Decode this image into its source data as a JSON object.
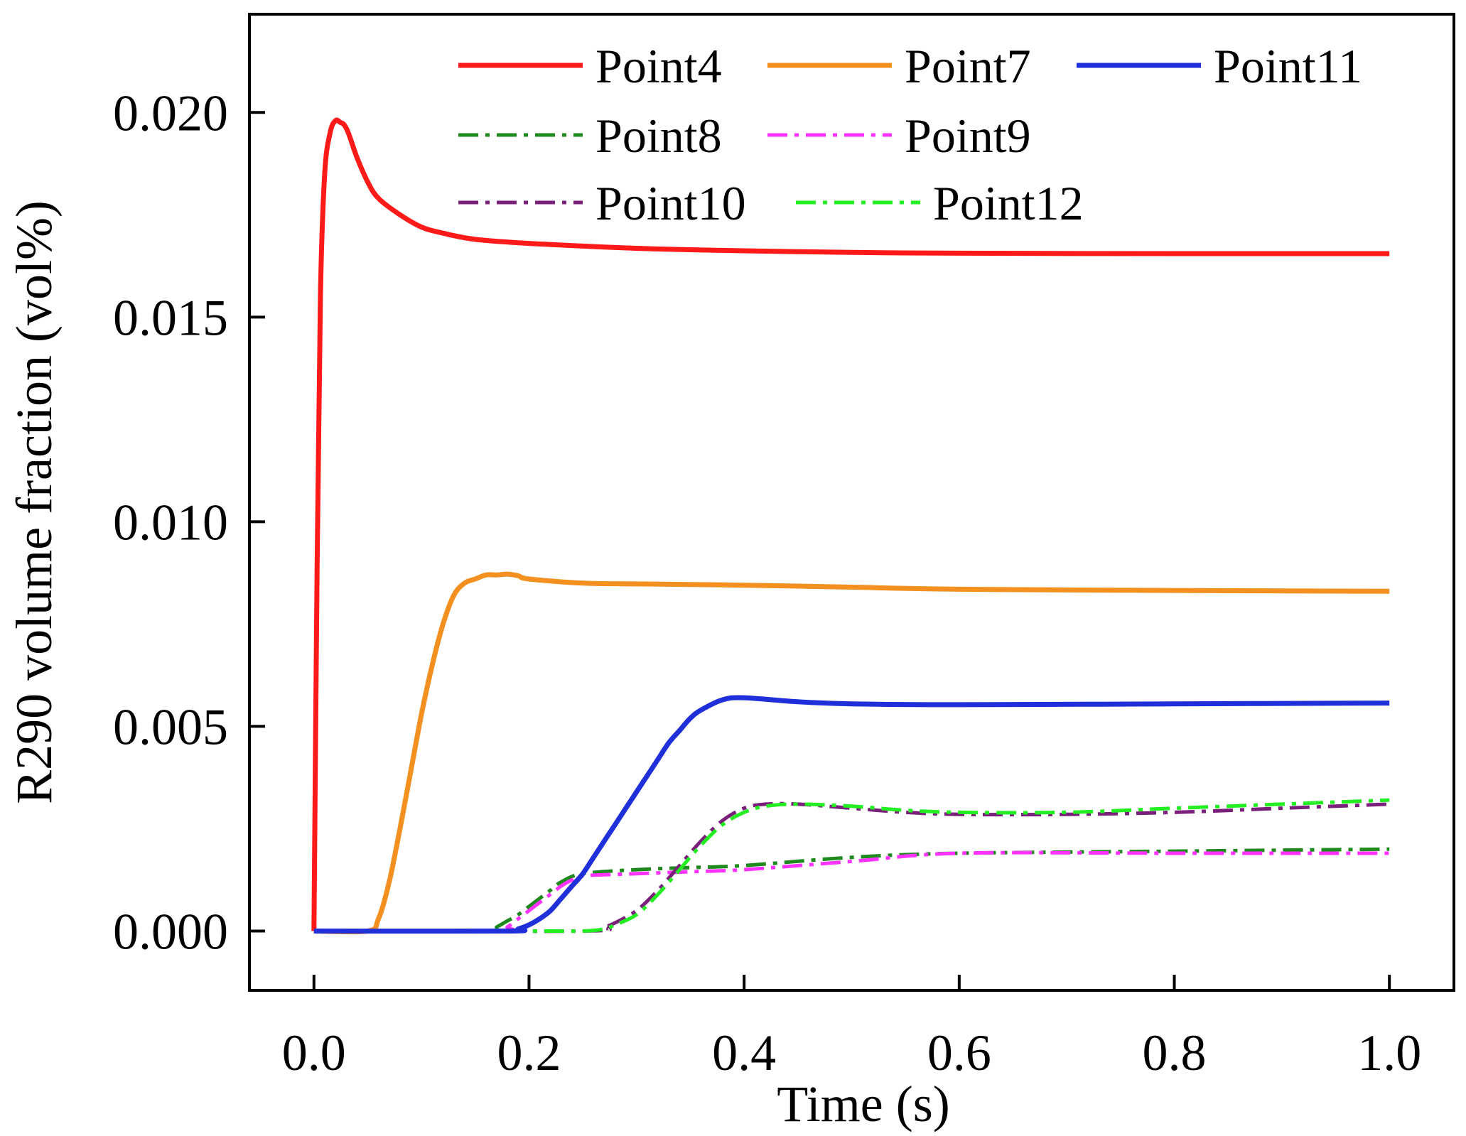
{
  "chart_data": {
    "type": "line",
    "title": "",
    "xlabel": "Time (s)",
    "ylabel": "R290 volume fraction (vol%)",
    "xlim": [
      -0.06,
      1.06
    ],
    "ylim": [
      -0.00145,
      0.0224
    ],
    "xticks": [
      0.0,
      0.2,
      0.4,
      0.6,
      0.8,
      1.0
    ],
    "xtick_labels": [
      "0.0",
      "0.2",
      "0.4",
      "0.6",
      "0.8",
      "1.0"
    ],
    "yticks": [
      0.0,
      0.005,
      0.01,
      0.015,
      0.02
    ],
    "ytick_labels": [
      "0.000",
      "0.005",
      "0.010",
      "0.015",
      "0.020"
    ],
    "grid": false,
    "legend_position": "top-right",
    "series": [
      {
        "name": "Point4",
        "color": "#ff1a1a",
        "style": "solid",
        "x": [
          0,
          0.003,
          0.006,
          0.01,
          0.015,
          0.02,
          0.025,
          0.028,
          0.032,
          0.04,
          0.05,
          0.06,
          0.08,
          0.1,
          0.12,
          0.15,
          0.2,
          0.3,
          0.4,
          0.5,
          0.6,
          0.8,
          1.0
        ],
        "y": [
          0,
          0.009,
          0.0155,
          0.0185,
          0.0195,
          0.0198,
          0.01975,
          0.0197,
          0.0195,
          0.0189,
          0.0183,
          0.0179,
          0.0175,
          0.0172,
          0.01705,
          0.0169,
          0.0168,
          0.01668,
          0.01662,
          0.01658,
          0.01656,
          0.01655,
          0.01655
        ]
      },
      {
        "name": "Point7",
        "color": "#f39020",
        "style": "solid",
        "x": [
          0,
          0.05,
          0.06,
          0.07,
          0.08,
          0.09,
          0.1,
          0.11,
          0.12,
          0.13,
          0.14,
          0.15,
          0.16,
          0.17,
          0.18,
          0.19,
          0.2,
          0.25,
          0.3,
          0.4,
          0.5,
          0.6,
          0.8,
          1.0
        ],
        "y": [
          0,
          0,
          0.0003,
          0.0012,
          0.0025,
          0.0039,
          0.0053,
          0.0065,
          0.0075,
          0.0082,
          0.0085,
          0.0086,
          0.0087,
          0.0087,
          0.00872,
          0.00868,
          0.0086,
          0.0085,
          0.00848,
          0.00845,
          0.0084,
          0.00835,
          0.00832,
          0.0083
        ]
      },
      {
        "name": "Point11",
        "color": "#1f2fd9",
        "style": "solid",
        "x": [
          0,
          0.18,
          0.19,
          0.2,
          0.21,
          0.22,
          0.23,
          0.24,
          0.25,
          0.26,
          0.27,
          0.28,
          0.29,
          0.3,
          0.31,
          0.32,
          0.33,
          0.34,
          0.35,
          0.36,
          0.38,
          0.4,
          0.45,
          0.5,
          0.6,
          0.8,
          1.0
        ],
        "y": [
          0,
          0,
          5e-05,
          0.00015,
          0.0003,
          0.0005,
          0.0008,
          0.0011,
          0.0014,
          0.0018,
          0.0022,
          0.0026,
          0.003,
          0.0034,
          0.0038,
          0.0042,
          0.0046,
          0.0049,
          0.0052,
          0.0054,
          0.00565,
          0.0057,
          0.0056,
          0.00555,
          0.00553,
          0.00555,
          0.00557
        ]
      },
      {
        "name": "Point8",
        "color": "#1e8a1e",
        "style": "dashdot",
        "x": [
          0,
          0.16,
          0.17,
          0.18,
          0.19,
          0.2,
          0.21,
          0.22,
          0.23,
          0.25,
          0.3,
          0.35,
          0.4,
          0.5,
          0.6,
          0.8,
          1.0
        ],
        "y": [
          0,
          0,
          0.0001,
          0.00025,
          0.0004,
          0.0006,
          0.0008,
          0.001,
          0.0012,
          0.0014,
          0.0015,
          0.00155,
          0.0016,
          0.0018,
          0.0019,
          0.00195,
          0.002
        ]
      },
      {
        "name": "Point9",
        "color": "#ff33ff",
        "style": "dashdot",
        "x": [
          0,
          0.17,
          0.18,
          0.19,
          0.2,
          0.21,
          0.22,
          0.23,
          0.24,
          0.25,
          0.3,
          0.35,
          0.4,
          0.5,
          0.6,
          0.8,
          1.0
        ],
        "y": [
          0,
          0,
          0.0001,
          0.0003,
          0.0005,
          0.0007,
          0.0009,
          0.0011,
          0.00125,
          0.00135,
          0.0014,
          0.00145,
          0.0015,
          0.0017,
          0.0019,
          0.0019,
          0.0019
        ]
      },
      {
        "name": "Point10",
        "color": "#7a1f7a",
        "style": "dashdot",
        "x": [
          0,
          0.25,
          0.27,
          0.28,
          0.3,
          0.32,
          0.34,
          0.36,
          0.38,
          0.4,
          0.42,
          0.45,
          0.5,
          0.55,
          0.6,
          0.7,
          0.8,
          0.9,
          1.0
        ],
        "y": [
          0,
          0,
          0.0001,
          0.0002,
          0.0005,
          0.001,
          0.0016,
          0.0022,
          0.0027,
          0.003,
          0.0031,
          0.0031,
          0.003,
          0.0029,
          0.00285,
          0.00285,
          0.0029,
          0.003,
          0.0031
        ]
      },
      {
        "name": "Point12",
        "color": "#22ee22",
        "style": "dashdot",
        "x": [
          0,
          0.2,
          0.25,
          0.27,
          0.28,
          0.3,
          0.32,
          0.34,
          0.36,
          0.38,
          0.4,
          0.42,
          0.45,
          0.5,
          0.55,
          0.6,
          0.7,
          0.8,
          0.9,
          1.0
        ],
        "y": [
          0,
          0,
          0,
          5e-05,
          0.00015,
          0.0004,
          0.0009,
          0.0015,
          0.0021,
          0.0026,
          0.0029,
          0.00305,
          0.0031,
          0.00305,
          0.00295,
          0.0029,
          0.0029,
          0.003,
          0.0031,
          0.0032
        ]
      }
    ],
    "legend_rows": [
      [
        "Point4",
        "Point7",
        "Point11"
      ],
      [
        "Point8",
        "Point9"
      ],
      [
        "Point10",
        "Point12"
      ]
    ]
  }
}
